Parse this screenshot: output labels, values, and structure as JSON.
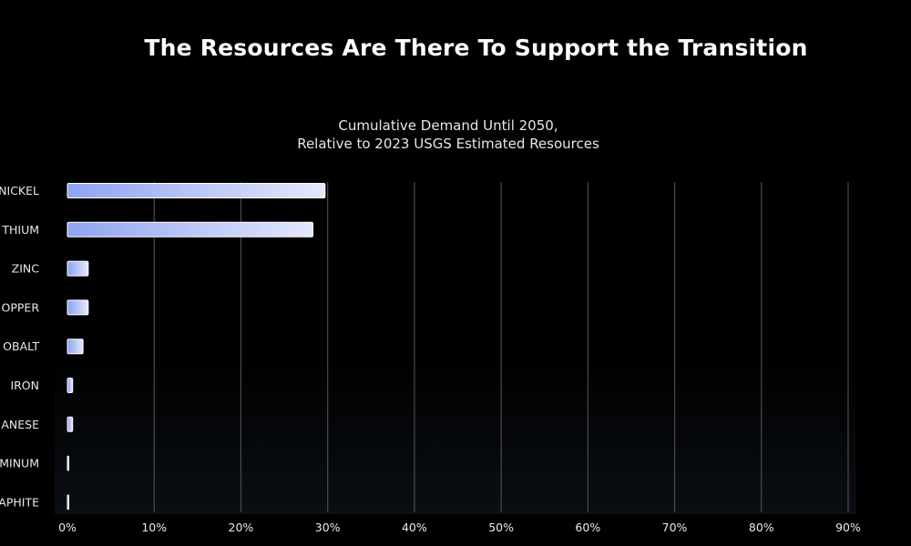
{
  "page": {
    "title": "The Resources Are There To Support the Transition"
  },
  "chart_data": {
    "type": "bar",
    "orientation": "horizontal",
    "subtitle_lines": [
      "Cumulative Demand Until 2050,",
      "Relative to 2023 USGS Estimated Resources"
    ],
    "categories": [
      "NICKEL",
      "LITHIUM",
      "ZINC",
      "COPPER",
      "COBALT",
      "IRON",
      "MANGANESE",
      "ALUMINUM",
      "GRAPHITE"
    ],
    "visible_category_labels": [
      "NICKEL",
      "THIUM",
      "ZINC",
      "OPPER",
      "OBALT",
      "IRON",
      "ANESE",
      "MINUM",
      "APHITE"
    ],
    "values": [
      29.7,
      28.3,
      2.4,
      2.4,
      1.8,
      0.6,
      0.6,
      0.15,
      0.1
    ],
    "xlim": [
      0,
      90
    ],
    "x_ticks": [
      0,
      10,
      20,
      30,
      40,
      50,
      60,
      70,
      80,
      90
    ],
    "x_tick_labels": [
      "0%",
      "10%",
      "20%",
      "30%",
      "40%",
      "50%",
      "60%",
      "70%",
      "80%",
      "90%"
    ],
    "grid": "vertical",
    "colors": {
      "bar_start": "#8fa3f2",
      "bar_end": "#e4e8fc",
      "bar_border": "#ffffff",
      "grid": "#4a4a4e",
      "label": "#e8e8ee"
    }
  }
}
